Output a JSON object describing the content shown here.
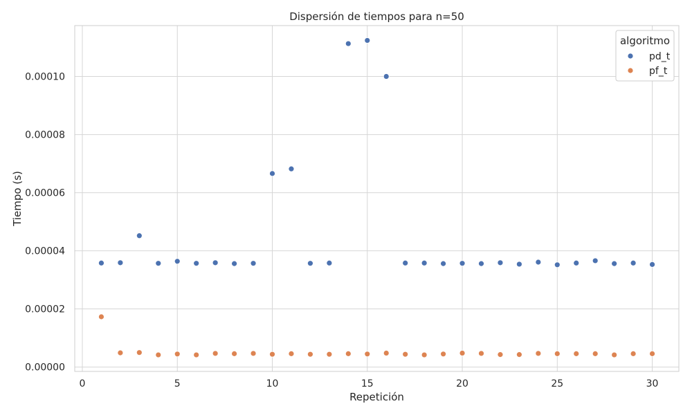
{
  "chart_data": {
    "type": "scatter",
    "title": "Dispersión de tiempos para n=50",
    "xlabel": "Repetición",
    "ylabel": "Tiempo (s)",
    "xlim": [
      -0.4,
      31.4
    ],
    "ylim": [
      -1.5e-06,
      0.0001175
    ],
    "xticks": [
      0,
      5,
      10,
      15,
      20,
      25,
      30
    ],
    "xtick_labels": [
      "0",
      "5",
      "10",
      "15",
      "20",
      "25",
      "30"
    ],
    "yticks": [
      0,
      2e-05,
      4e-05,
      6e-05,
      8e-05,
      0.0001
    ],
    "ytick_labels": [
      "0.00000",
      "0.00002",
      "0.00004",
      "0.00006",
      "0.00008",
      "0.00010"
    ],
    "grid": true,
    "legend": {
      "title": "algoritmo",
      "placement": "top-right"
    },
    "x": [
      1,
      2,
      3,
      4,
      5,
      6,
      7,
      8,
      9,
      10,
      11,
      12,
      13,
      14,
      15,
      16,
      17,
      18,
      19,
      20,
      21,
      22,
      23,
      24,
      25,
      26,
      27,
      28,
      29,
      30
    ],
    "series": [
      {
        "name": "pd_t",
        "color": "#4c72b0",
        "values": [
          3.58e-05,
          3.59e-05,
          4.52e-05,
          3.57e-05,
          3.64e-05,
          3.57e-05,
          3.59e-05,
          3.56e-05,
          3.57e-05,
          6.66e-05,
          6.82e-05,
          3.57e-05,
          3.58e-05,
          0.0001113,
          0.0001124,
          0.0001,
          3.58e-05,
          3.58e-05,
          3.56e-05,
          3.57e-05,
          3.56e-05,
          3.59e-05,
          3.54e-05,
          3.61e-05,
          3.52e-05,
          3.58e-05,
          3.66e-05,
          3.56e-05,
          3.58e-05,
          3.53e-05
        ]
      },
      {
        "name": "pf_t",
        "color": "#dd8452",
        "values": [
          1.73e-05,
          4.9e-06,
          5e-06,
          4.2e-06,
          4.5e-06,
          4.2e-06,
          4.7e-06,
          4.6e-06,
          4.7e-06,
          4.4e-06,
          4.6e-06,
          4.4e-06,
          4.4e-06,
          4.6e-06,
          4.5e-06,
          4.8e-06,
          4.4e-06,
          4.2e-06,
          4.5e-06,
          4.8e-06,
          4.7e-06,
          4.3e-06,
          4.3e-06,
          4.7e-06,
          4.6e-06,
          4.6e-06,
          4.6e-06,
          4.2e-06,
          4.6e-06,
          4.6e-06
        ]
      }
    ]
  }
}
